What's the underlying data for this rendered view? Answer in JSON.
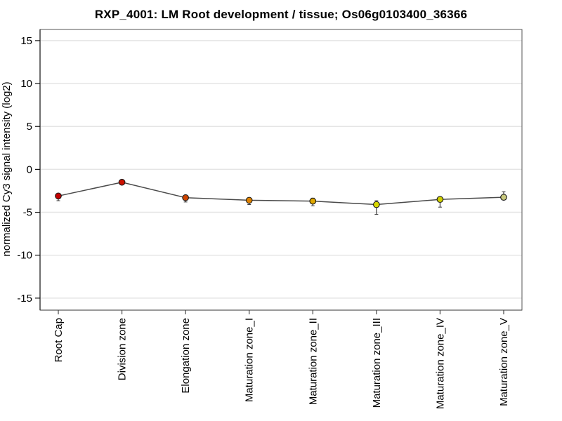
{
  "chart_data": {
    "type": "line",
    "title": "RXP_4001: LM Root development / tissue; Os06g0103400_36366",
    "ylabel": "normalized Cy3 signal intensity (log2)",
    "xlabel": "",
    "categories": [
      "Root Cap",
      "Division zone",
      "Elongation zone",
      "Maturation zone_I",
      "Maturation zone_II",
      "Maturation zone_III",
      "Maturation zone_IV",
      "Maturation zone_V"
    ],
    "series": [
      {
        "name": "Os06g0103400_36366",
        "values": [
          -3.1,
          -1.5,
          -3.3,
          -3.6,
          -3.7,
          -4.1,
          -3.5,
          -3.25
        ],
        "err_up": [
          0.2,
          0.2,
          0.25,
          0.25,
          0.35,
          0.45,
          0.3,
          0.65
        ],
        "err_down": [
          0.55,
          0.2,
          0.5,
          0.5,
          0.55,
          1.15,
          0.9,
          0.3
        ],
        "point_colors": [
          "#c40000",
          "#cc1100",
          "#cc4400",
          "#e08200",
          "#e0a800",
          "#d8d800",
          "#cfcf00",
          "#c9c97e"
        ]
      }
    ],
    "yticks": [
      15,
      10,
      5,
      0,
      -5,
      -10,
      -15
    ],
    "ylim": [
      -16.4,
      16.3
    ],
    "grid": true,
    "legend": "none",
    "colors": {
      "line": "#4a4a4a",
      "error_bar": "#3a3a3a",
      "marker_outline": "#1a1a1a",
      "grid": "#e5e5e5",
      "box": "#555555",
      "axis": "#111111",
      "tick": "#444444",
      "background": "#ffffff",
      "text": "#000000"
    }
  }
}
